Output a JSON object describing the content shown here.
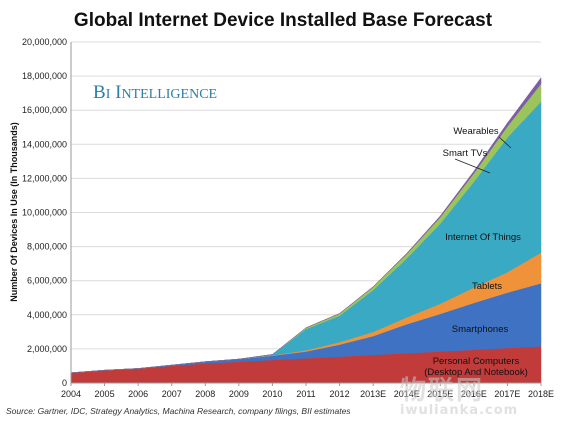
{
  "chart_data": {
    "type": "area",
    "stacked": true,
    "title": "Global Internet Device Installed Base Forecast",
    "brand": "BI Intelligence",
    "ylabel": "Number Of Devices In Use (In Thousands)",
    "xlabel": "",
    "source": "Source: Gartner, IDC, Strategy Analytics, Machina Research, company filings, BII estimates",
    "x": [
      "2004",
      "2005",
      "2006",
      "2007",
      "2008",
      "2009",
      "2010",
      "2011",
      "2012",
      "2013E",
      "2014E",
      "2015E",
      "2016E",
      "2017E",
      "2018E"
    ],
    "ylim": [
      0,
      20000000
    ],
    "yticks": [
      0,
      2000000,
      4000000,
      6000000,
      8000000,
      10000000,
      12000000,
      14000000,
      16000000,
      18000000,
      20000000
    ],
    "ytick_labels": [
      "0",
      "2,000,000",
      "4,000,000",
      "6,000,000",
      "8,000,000",
      "10,000,000",
      "12,000,000",
      "14,000,000",
      "16,000,000",
      "18,000,000",
      "20,000,000"
    ],
    "grid": true,
    "legend": "inline",
    "series": [
      {
        "name": "Personal Computers (Desktop And Notebook)",
        "color": "#c23b3b",
        "values": [
          600000,
          750000,
          850000,
          1000000,
          1150000,
          1250000,
          1350000,
          1450000,
          1550000,
          1650000,
          1750000,
          1850000,
          1950000,
          2050000,
          2150000
        ]
      },
      {
        "name": "Smartphones",
        "color": "#3f72c2",
        "values": [
          0,
          0,
          0,
          50000,
          100000,
          150000,
          250000,
          400000,
          700000,
          1100000,
          1700000,
          2200000,
          2750000,
          3250000,
          3700000
        ]
      },
      {
        "name": "Tablets",
        "color": "#f0923a",
        "values": [
          0,
          0,
          0,
          0,
          0,
          0,
          20000,
          70000,
          150000,
          250000,
          400000,
          600000,
          900000,
          1200000,
          1800000
        ]
      },
      {
        "name": "Internet Of Things",
        "color": "#3aa9c4",
        "values": [
          0,
          0,
          0,
          0,
          0,
          0,
          50000,
          1250000,
          1550000,
          2450000,
          3450000,
          4700000,
          6200000,
          7900000,
          8850000
        ]
      },
      {
        "name": "Smart TVs",
        "color": "#9bc45a",
        "values": [
          0,
          0,
          0,
          0,
          0,
          0,
          0,
          70000,
          120000,
          180000,
          260000,
          380000,
          500000,
          650000,
          1050000
        ]
      },
      {
        "name": "Wearables",
        "color": "#7e5ca6",
        "values": [
          0,
          0,
          0,
          0,
          0,
          0,
          0,
          0,
          10000,
          20000,
          40000,
          70000,
          120000,
          200000,
          350000
        ]
      }
    ],
    "annotations": [
      "Wearables",
      "Smart TVs",
      "Internet Of Things",
      "Tablets",
      "Smartphones",
      "Personal Computers (Desktop And Notebook)"
    ]
  },
  "watermark": {
    "line1": "物联网",
    "line2": "iwulianka.com"
  }
}
